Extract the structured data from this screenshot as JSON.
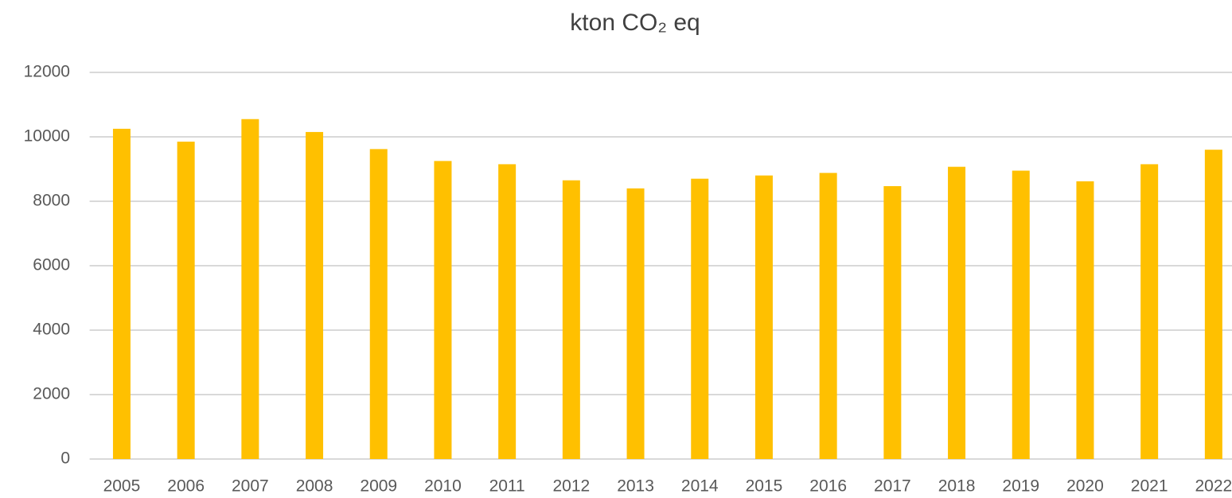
{
  "chart_data": {
    "type": "bar",
    "title": "kton CO₂ eq",
    "categories": [
      "2005",
      "2006",
      "2007",
      "2008",
      "2009",
      "2010",
      "2011",
      "2012",
      "2013",
      "2014",
      "2015",
      "2016",
      "2017",
      "2018",
      "2019",
      "2020",
      "2021",
      "2022"
    ],
    "values": [
      10250,
      9850,
      10550,
      10150,
      9620,
      9250,
      9150,
      8650,
      8400,
      8700,
      8800,
      8880,
      8470,
      9070,
      8950,
      8620,
      9150,
      9600
    ],
    "color": "#ffc000",
    "ylim": [
      0,
      12000
    ],
    "yticks": [
      0,
      2000,
      4000,
      6000,
      8000,
      10000,
      12000
    ],
    "grid": true
  }
}
